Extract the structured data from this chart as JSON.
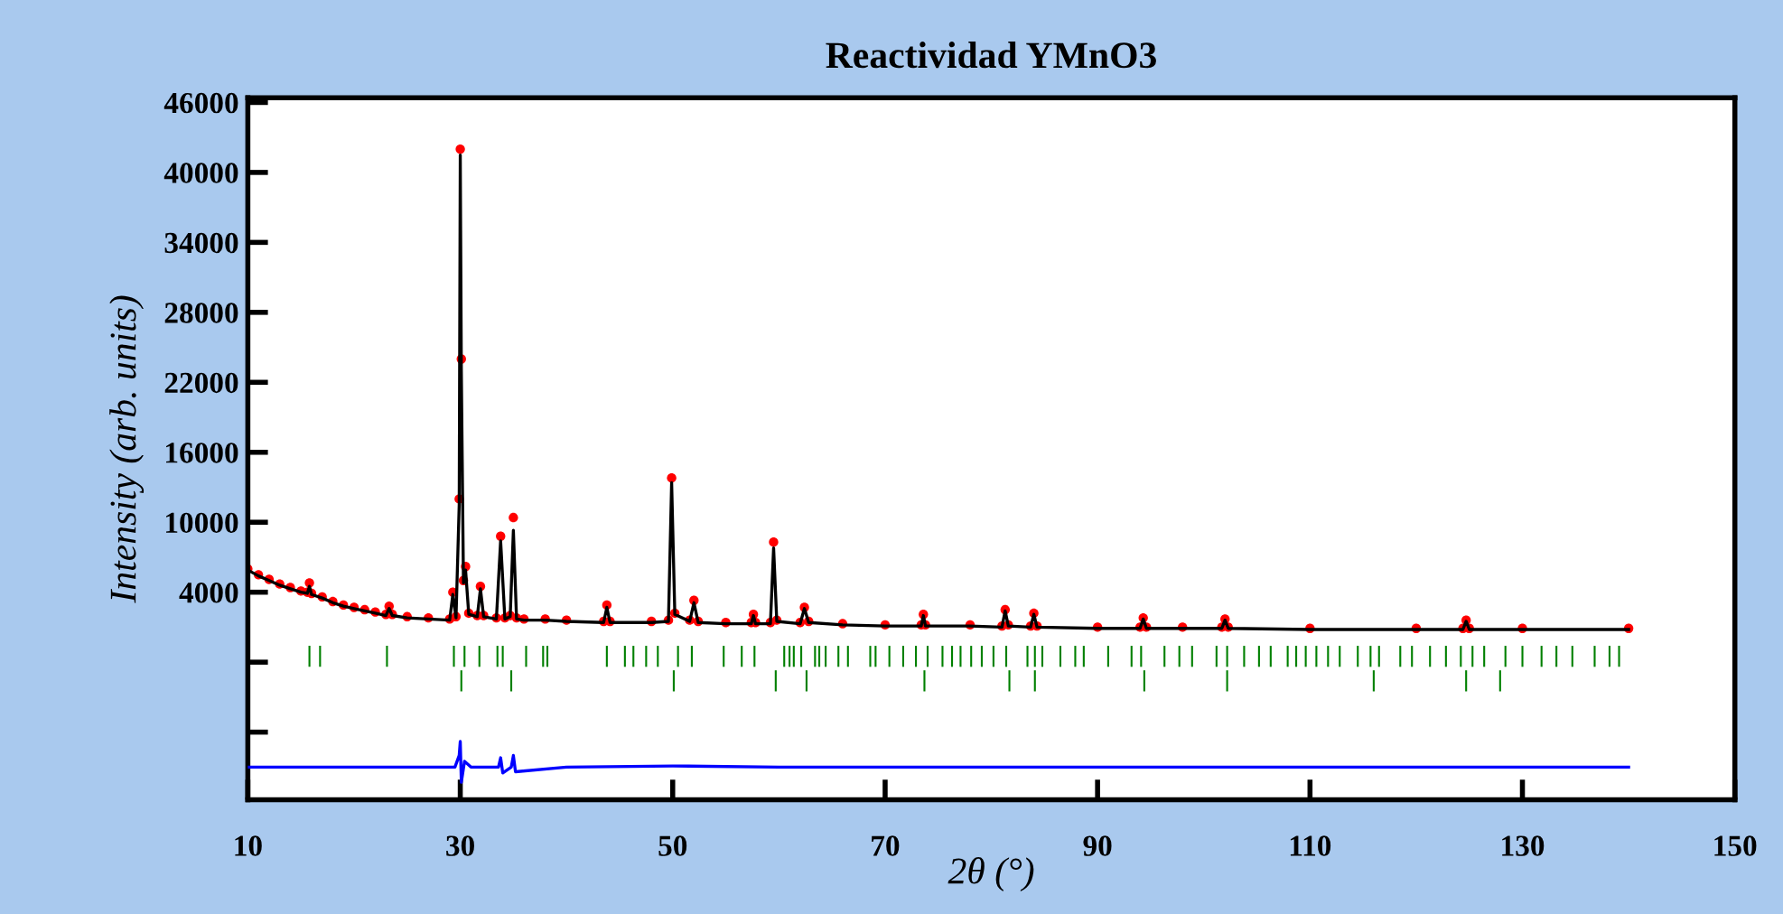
{
  "chart_data": {
    "type": "line",
    "title": "Reactividad YMnO3",
    "xlabel": "2θ (°)",
    "ylabel": "Intensity (arb. units)",
    "xlim": [
      10,
      150
    ],
    "xticks": [
      10,
      30,
      50,
      70,
      90,
      110,
      130,
      150
    ],
    "ylim": [
      -13800,
      46400
    ],
    "yticks": [
      {
        "value": -8000,
        "label": null
      },
      {
        "value": -2000,
        "label": null
      },
      4000,
      10000,
      16000,
      22000,
      28000,
      34000,
      40000,
      46000
    ],
    "grid": false,
    "legend": false,
    "series": [
      {
        "type": "scatter",
        "marker": "circle",
        "color": "#ff0000",
        "x": [
          10,
          11,
          12,
          13,
          14,
          15,
          15.6,
          15.8,
          16.0,
          17,
          18,
          19,
          20,
          21,
          22,
          23.0,
          23.3,
          23.6,
          25,
          27,
          29.0,
          29.3,
          29.6,
          29.9,
          30.0,
          30.1,
          30.3,
          30.5,
          30.8,
          31.6,
          31.9,
          32.2,
          33.4,
          33.8,
          34.2,
          34.7,
          35.0,
          35.3,
          36,
          38,
          40,
          43.5,
          43.8,
          44.1,
          48,
          49.6,
          49.9,
          50.2,
          51.6,
          52.0,
          52.4,
          55,
          57.4,
          57.6,
          57.8,
          59.2,
          59.5,
          59.8,
          62.0,
          62.4,
          62.8,
          66,
          70,
          73.4,
          73.6,
          73.8,
          78,
          81.0,
          81.3,
          81.6,
          83.7,
          84.0,
          84.3,
          90,
          94.0,
          94.3,
          94.6,
          98,
          101.7,
          102.0,
          102.3,
          110,
          120,
          124.4,
          124.7,
          125.0,
          130,
          140
        ],
        "values": [
          6000,
          5500,
          5100,
          4700,
          4400,
          4100,
          4000,
          4800,
          3900,
          3600,
          3200,
          2900,
          2700,
          2500,
          2300,
          2100,
          2800,
          2100,
          1900,
          1800,
          1700,
          4000,
          1900,
          12000,
          42000,
          24000,
          5000,
          6200,
          2200,
          2000,
          4500,
          2000,
          1800,
          8800,
          1800,
          2000,
          10400,
          1800,
          1700,
          1700,
          1600,
          1500,
          2900,
          1500,
          1500,
          1600,
          13800,
          2200,
          1600,
          3300,
          1500,
          1400,
          1400,
          2100,
          1400,
          1400,
          8300,
          1600,
          1400,
          2700,
          1500,
          1300,
          1200,
          1200,
          2100,
          1200,
          1200,
          1100,
          2500,
          1200,
          1100,
          2200,
          1100,
          1000,
          1000,
          1800,
          1000,
          1000,
          1000,
          1700,
          1000,
          900,
          900,
          900,
          1600,
          900,
          900,
          900
        ]
      },
      {
        "marker": "none",
        "line_style": "solid",
        "color": "#000000",
        "x": [
          10,
          11,
          12,
          13,
          14,
          15,
          15.6,
          15.8,
          16.0,
          17,
          18,
          19,
          20,
          21,
          22,
          23.0,
          23.3,
          23.6,
          25,
          27,
          29.0,
          29.3,
          29.6,
          29.9,
          30.0,
          30.1,
          30.3,
          30.5,
          30.8,
          31.6,
          31.9,
          32.2,
          33.4,
          33.8,
          34.2,
          34.7,
          35.0,
          35.3,
          36,
          38,
          40,
          43.5,
          43.8,
          44.1,
          48,
          49.6,
          49.9,
          50.2,
          51.6,
          52.0,
          52.4,
          55,
          57.4,
          57.6,
          57.8,
          59.2,
          59.5,
          59.8,
          62.0,
          62.4,
          62.8,
          66,
          70,
          73.4,
          73.6,
          73.8,
          78,
          81.0,
          81.3,
          81.6,
          83.7,
          84.0,
          84.3,
          90,
          94.0,
          94.3,
          94.6,
          98,
          101.7,
          102.0,
          102.3,
          110,
          120,
          124.4,
          124.7,
          125.0,
          130,
          140
        ],
        "values": [
          5900,
          5400,
          5000,
          4600,
          4300,
          4000,
          3900,
          4500,
          3800,
          3500,
          3100,
          2800,
          2600,
          2400,
          2200,
          2000,
          2600,
          2000,
          1800,
          1700,
          1600,
          3800,
          1800,
          11500,
          41500,
          23000,
          4800,
          5900,
          2100,
          1900,
          4300,
          1900,
          1700,
          8400,
          1700,
          1900,
          9300,
          1700,
          1600,
          1600,
          1500,
          1400,
          2700,
          1400,
          1400,
          1500,
          13400,
          2100,
          1500,
          3100,
          1400,
          1300,
          1300,
          2000,
          1300,
          1300,
          7800,
          1500,
          1300,
          2600,
          1400,
          1200,
          1100,
          1100,
          2000,
          1100,
          1100,
          1000,
          2400,
          1100,
          1000,
          2100,
          1000,
          900,
          900,
          1700,
          900,
          900,
          900,
          1600,
          900,
          800,
          800,
          800,
          1500,
          800,
          800,
          800
        ]
      },
      {
        "type": "bar",
        "color": "#008000",
        "base": [
          -2400,
          -2400,
          -2400,
          -2400,
          -2400,
          -2400,
          -2400,
          -2400,
          -2400,
          -2400,
          -2400,
          -2400,
          -2400,
          -2400,
          -2400,
          -2400,
          -2400,
          -2400,
          -2400,
          -2400,
          -2400,
          -2400,
          -2400,
          -2400,
          -2400,
          -2400,
          -2400,
          -2400,
          -2400,
          -2400,
          -2400,
          -2400,
          -2400,
          -2400,
          -2400,
          -2400,
          -2400,
          -2400,
          -2400,
          -2400,
          -2400,
          -2400,
          -2400,
          -2400,
          -2400,
          -2400,
          -2400,
          -2400,
          -2400,
          -2400,
          -2400,
          -2400,
          -2400,
          -2400,
          -2400,
          -2400,
          -2400,
          -2400,
          -2400,
          -2400,
          -2400,
          -2400,
          -2400,
          -2400,
          -2400,
          -2400,
          -2400,
          -2400,
          -2400,
          -2400,
          -2400,
          -2400,
          -2400,
          -2400,
          -2400,
          -2400,
          -2400,
          -2400,
          -2400,
          -2400,
          -2400,
          -2400,
          -2400,
          -2400
        ],
        "x": [
          15.8,
          16.8,
          23.1,
          29.4,
          30.4,
          31.8,
          33.5,
          34.0,
          36.2,
          37.8,
          38.2,
          43.8,
          45.5,
          46.3,
          47.5,
          48.6,
          50.5,
          51.8,
          54.8,
          56.5,
          57.7,
          60.5,
          61.0,
          61.4,
          62.1,
          63.4,
          63.8,
          64.4,
          65.6,
          66.5,
          68.6,
          69.1,
          70.4,
          71.7,
          72.9,
          74.0,
          75.4,
          76.3,
          77.1,
          78.1,
          79.1,
          80.2,
          81.4,
          83.4,
          84.1,
          84.8,
          86.5,
          87.9,
          88.7,
          91.0,
          93.2,
          94.1,
          96.3,
          97.7,
          98.9,
          101.2,
          102.2,
          103.8,
          105.2,
          106.3,
          107.9,
          108.7,
          109.6,
          110.6,
          111.7,
          112.8,
          114.5,
          115.7,
          116.5,
          118.5,
          119.6,
          121.3,
          122.8,
          124.2,
          125.3,
          126.4,
          128.4,
          130.0,
          131.8,
          133.2,
          134.7,
          136.8,
          138.2,
          139.1
        ],
        "values": [
          1800,
          1800,
          1800,
          1800,
          1800,
          1800,
          1800,
          1800,
          1800,
          1800,
          1800,
          1800,
          1800,
          1800,
          1800,
          1800,
          1800,
          1800,
          1800,
          1800,
          1800,
          1800,
          1800,
          1800,
          1800,
          1800,
          1800,
          1800,
          1800,
          1800,
          1800,
          1800,
          1800,
          1800,
          1800,
          1800,
          1800,
          1800,
          1800,
          1800,
          1800,
          1800,
          1800,
          1800,
          1800,
          1800,
          1800,
          1800,
          1800,
          1800,
          1800,
          1800,
          1800,
          1800,
          1800,
          1800,
          1800,
          1800,
          1800,
          1800,
          1800,
          1800,
          1800,
          1800,
          1800,
          1800,
          1800,
          1800,
          1800,
          1800,
          1800,
          1800,
          1800,
          1800,
          1800,
          1800,
          1800,
          1800,
          1800,
          1800,
          1800,
          1800,
          1800,
          1800
        ]
      },
      {
        "type": "bar",
        "color": "#008000",
        "base": [
          -4500,
          -4500,
          -4500,
          -4500,
          -4500,
          -4500,
          -4500,
          -4500,
          -4500,
          -4500,
          -4500,
          -4500,
          -4500
        ],
        "x": [
          30.1,
          34.8,
          50.1,
          59.7,
          62.6,
          73.7,
          81.7,
          84.1,
          94.4,
          102.2,
          116.0,
          124.7,
          127.9
        ],
        "values": [
          1800,
          1800,
          1800,
          1800,
          1800,
          1800,
          1800,
          1800,
          1800,
          1800,
          1800,
          1800,
          1800
        ]
      },
      {
        "marker": "none",
        "line_style": "solid",
        "color": "#0000ff",
        "x": [
          10,
          20,
          29.5,
          29.9,
          30.0,
          30.1,
          30.4,
          31,
          33.6,
          33.8,
          34.0,
          34.8,
          35.0,
          35.2,
          40,
          50,
          60,
          80,
          100,
          120,
          140
        ],
        "values": [
          -11000,
          -11000,
          -11000,
          -10000,
          -8800,
          -12300,
          -10500,
          -11000,
          -11000,
          -10200,
          -11500,
          -11000,
          -10000,
          -11400,
          -11000,
          -10900,
          -11000,
          -11000,
          -11000,
          -11000,
          -11000
        ]
      }
    ]
  }
}
